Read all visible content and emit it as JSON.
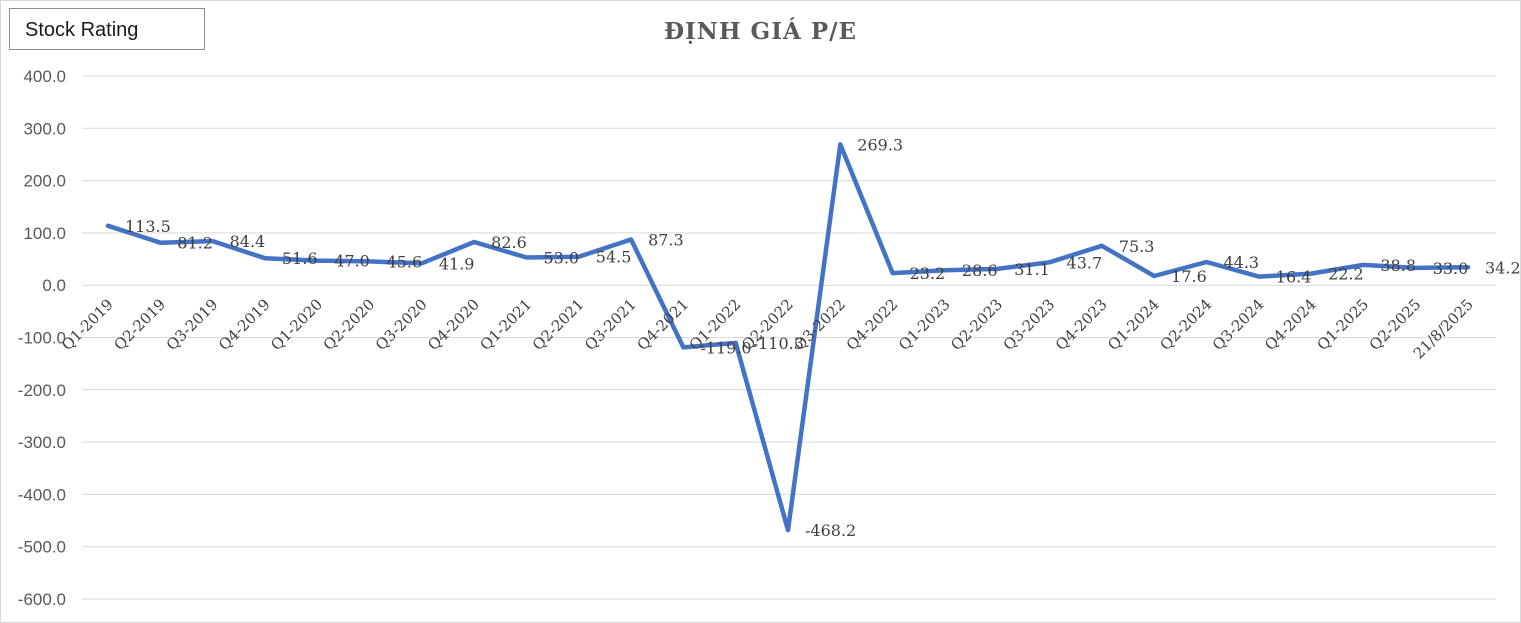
{
  "badge": {
    "label": "Stock Rating"
  },
  "chart_data": {
    "type": "line",
    "title": "ĐỊNH GIÁ P/E",
    "xlabel": "",
    "ylabel": "",
    "ylim": [
      -600,
      400
    ],
    "yticks": [
      400,
      300,
      200,
      100,
      0,
      -100,
      -200,
      -300,
      -400,
      -500,
      -600
    ],
    "ytick_labels": [
      "400.0",
      "300.0",
      "200.0",
      "100.0",
      "0.0",
      "-100.0",
      "-200.0",
      "-300.0",
      "-400.0",
      "-500.0",
      "-600.0"
    ],
    "grid": true,
    "legend": "none",
    "color": "#4472C4",
    "categories": [
      "Q1-2019",
      "Q2-2019",
      "Q3-2019",
      "Q4-2019",
      "Q1-2020",
      "Q2-2020",
      "Q3-2020",
      "Q4-2020",
      "Q1-2021",
      "Q2-2021",
      "Q3-2021",
      "Q4-2021",
      "Q1-2022",
      "Q2-2022",
      "Q3-2022",
      "Q4-2022",
      "Q1-2023",
      "Q2-2023",
      "Q3-2023",
      "Q4-2023",
      "Q1-2024",
      "Q2-2024",
      "Q3-2024",
      "Q4-2024",
      "Q1-2025",
      "Q2-2025",
      "21/8/2025"
    ],
    "series": [
      {
        "values": [
          113.5,
          81.2,
          84.4,
          51.6,
          47.0,
          45.6,
          41.9,
          82.6,
          53.0,
          54.5,
          87.3,
          -119.0,
          -110.3,
          -468.2,
          269.3,
          23.2,
          28.6,
          31.1,
          43.7,
          75.3,
          17.6,
          44.3,
          16.4,
          22.2,
          38.8,
          33.0,
          34.2
        ],
        "labels": [
          "113.5",
          "81.2",
          "84.4",
          "51.6",
          "47.0",
          "45.6",
          "41.9",
          "82.6",
          "53.0",
          "54.5",
          "87.3",
          "-119.0",
          "-110.3",
          "-468.2",
          "269.3",
          "23.2",
          "28.6",
          "31.1",
          "43.7",
          "75.3",
          "17.6",
          "44.3",
          "16.4",
          "22.2",
          "38.8",
          "33.0",
          "34.2"
        ]
      }
    ]
  }
}
